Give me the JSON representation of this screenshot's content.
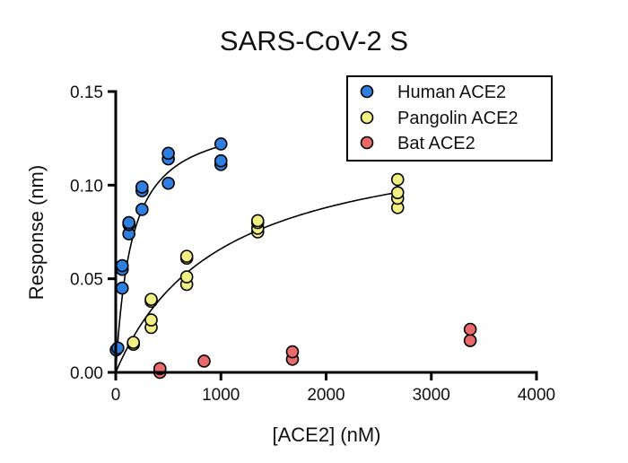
{
  "chart_data": {
    "type": "scatter",
    "title": "SARS-CoV-2 S",
    "xlabel": "[ACE2] (nM)",
    "ylabel": "Response (nm)",
    "xlim": [
      0,
      4000
    ],
    "ylim": [
      0,
      0.15
    ],
    "xticks": [
      0,
      1000,
      2000,
      3000,
      4000
    ],
    "xtick_labels": [
      "0",
      "1000",
      "2000",
      "3000",
      "4000"
    ],
    "yticks": [
      0,
      0.05,
      0.1,
      0.15
    ],
    "ytick_labels": [
      "0.00",
      "0.05",
      "0.10",
      "0.15"
    ],
    "grid": false,
    "legend_position": "top-right",
    "series": [
      {
        "name": "Human ACE2",
        "color": "#2e7fe0",
        "points": [
          [
            5,
            0.012
          ],
          [
            20,
            0.013
          ],
          [
            62,
            0.045
          ],
          [
            62,
            0.055
          ],
          [
            62,
            0.057
          ],
          [
            125,
            0.074
          ],
          [
            125,
            0.079
          ],
          [
            125,
            0.08
          ],
          [
            250,
            0.087
          ],
          [
            250,
            0.097
          ],
          [
            250,
            0.099
          ],
          [
            500,
            0.101
          ],
          [
            500,
            0.114
          ],
          [
            500,
            0.117
          ],
          [
            1000,
            0.111
          ],
          [
            1000,
            0.113
          ],
          [
            1000,
            0.122
          ]
        ],
        "fit": {
          "model": "one-site",
          "bmax": 0.139,
          "kd": 150
        }
      },
      {
        "name": "Pangolin ACE2",
        "color": "#f2ef84",
        "points": [
          [
            168,
            0.015
          ],
          [
            168,
            0.016
          ],
          [
            337,
            0.024
          ],
          [
            337,
            0.028
          ],
          [
            337,
            0.038
          ],
          [
            337,
            0.039
          ],
          [
            675,
            0.047
          ],
          [
            675,
            0.051
          ],
          [
            675,
            0.061
          ],
          [
            675,
            0.062
          ],
          [
            1350,
            0.075
          ],
          [
            1350,
            0.077
          ],
          [
            1350,
            0.08
          ],
          [
            1350,
            0.081
          ],
          [
            2680,
            0.088
          ],
          [
            2680,
            0.093
          ],
          [
            2680,
            0.096
          ],
          [
            2680,
            0.103
          ]
        ],
        "fit": {
          "model": "one-site",
          "bmax": 0.132,
          "kd": 1000
        }
      },
      {
        "name": "Bat ACE2",
        "color": "#e86a6a",
        "points": [
          [
            420,
            0.0
          ],
          [
            420,
            0.002
          ],
          [
            840,
            0.006
          ],
          [
            1680,
            0.007
          ],
          [
            1680,
            0.011
          ],
          [
            3370,
            0.017
          ],
          [
            3370,
            0.023
          ]
        ]
      }
    ]
  }
}
